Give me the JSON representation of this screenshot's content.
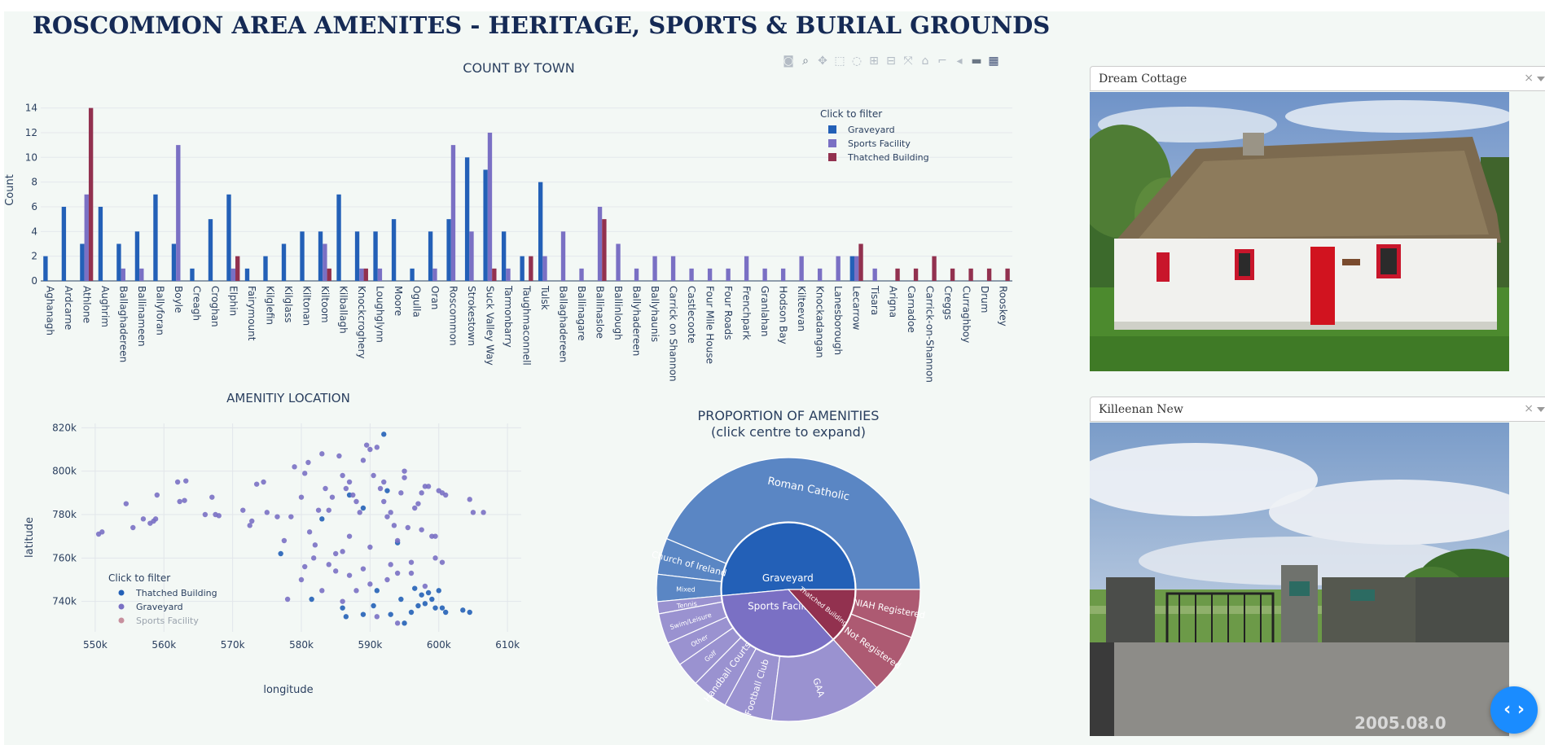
{
  "page": {
    "title": "ROSCOMMON AREA AMENITES - HERITAGE, SPORTS & BURIAL GROUNDS"
  },
  "colors": {
    "graveyard": "#2360b7",
    "sports": "#7a70c4",
    "thatched": "#92314f"
  },
  "toolbar": {
    "icons": [
      "camera-icon",
      "zoom-icon",
      "pan-icon",
      "box-select-icon",
      "lasso-icon",
      "zoom-in-icon",
      "zoom-out-icon",
      "autoscale-icon",
      "reset-axes-icon",
      "spike-lines-icon",
      "hover-closest-icon",
      "hover-compare-icon",
      "plotly-logo-icon"
    ]
  },
  "chart_data": [
    {
      "type": "bar",
      "title": "COUNT BY TOWN",
      "xlabel": "",
      "ylabel": "Count",
      "ylim": [
        0,
        14.7
      ],
      "yticks": [
        0,
        2,
        4,
        6,
        8,
        10,
        12,
        14
      ],
      "legend": {
        "title": "Click to filter",
        "placement": "top-right"
      },
      "categories": [
        "Aghanagh",
        "Ardcarne",
        "Athlone",
        "Aughrim",
        "Ballaghadereen",
        "Ballinameen",
        "Ballyforan",
        "Boyle",
        "Creagh",
        "Croghan",
        "Elphin",
        "Fairymount",
        "Kilglefin",
        "Kilglass",
        "Kiltonan",
        "Kiltoom",
        "Kilballagh",
        "Knockcroghery",
        "Loughglynn",
        "Moore",
        "Ogulla",
        "Oran",
        "Roscommon",
        "Strokestown",
        "Suck Valley Way",
        "Tarmonbarry",
        "Taughmaconnell",
        "Tulsk",
        "Ballaghadereen",
        "Ballinagare",
        "Ballinasloe",
        "Ballinlough",
        "Ballyhadereen",
        "Ballyhaunis",
        "Carrick on Shannon",
        "Castlecoote",
        "Four Mile House",
        "Four Roads",
        "Frenchpark",
        "Granlahan",
        "Hodson Bay",
        "Kilteevan",
        "Knockadangan",
        "Lanesborough",
        "Lecarrow",
        "Tisara",
        "Arigna",
        "Carnadoe",
        "Carrick-on-Shannon",
        "Creggs",
        "Curraghboy",
        "Drum",
        "Rooskey"
      ],
      "series": [
        {
          "name": "Graveyard",
          "values": [
            2,
            6,
            3,
            6,
            3,
            4,
            7,
            3,
            1,
            5,
            7,
            1,
            2,
            3,
            4,
            4,
            7,
            4,
            4,
            5,
            1,
            4,
            5,
            10,
            9,
            4,
            2,
            8,
            0,
            0,
            0,
            0,
            0,
            0,
            0,
            0,
            0,
            0,
            0,
            0,
            0,
            0,
            0,
            0,
            2,
            0,
            0,
            0,
            0,
            0,
            0,
            0,
            0
          ]
        },
        {
          "name": "Sports Facility",
          "values": [
            0,
            0,
            7,
            0,
            1,
            1,
            0,
            11,
            0,
            0,
            1,
            0,
            0,
            0,
            0,
            3,
            0,
            1,
            1,
            0,
            0,
            1,
            11,
            4,
            12,
            1,
            0,
            2,
            4,
            1,
            6,
            3,
            1,
            2,
            2,
            1,
            1,
            1,
            2,
            1,
            1,
            2,
            1,
            2,
            2,
            1,
            0,
            0,
            0,
            0,
            0,
            0,
            0
          ]
        },
        {
          "name": "Thatched Building",
          "values": [
            0,
            0,
            14,
            0,
            0,
            0,
            0,
            0,
            0,
            0,
            2,
            0,
            0,
            0,
            0,
            1,
            0,
            1,
            0,
            0,
            0,
            0,
            0,
            0,
            1,
            0,
            2,
            0,
            0,
            0,
            5,
            0,
            0,
            0,
            0,
            0,
            0,
            0,
            0,
            0,
            0,
            0,
            0,
            0,
            3,
            0,
            1,
            1,
            2,
            1,
            1,
            1,
            1
          ]
        }
      ]
    },
    {
      "type": "scatter",
      "title": "AMENITIY LOCATION",
      "xlabel": "longitude",
      "ylabel": "latitude",
      "xlim": [
        548000,
        612000
      ],
      "ylim": [
        726000,
        822000
      ],
      "xticks": [
        "550k",
        "560k",
        "570k",
        "580k",
        "590k",
        "600k",
        "610k"
      ],
      "yticks": [
        "740k",
        "760k",
        "780k",
        "800k",
        "820k"
      ],
      "legend": {
        "title": "Click to filter",
        "placement": "bottom-left"
      },
      "series": [
        {
          "name": "Thatched Building",
          "points": [
            [
              577000,
              762000
            ],
            [
              581500,
              741000
            ],
            [
              586000,
              737000
            ],
            [
              589000,
              734000
            ],
            [
              590500,
              738000
            ],
            [
              591000,
              745000
            ],
            [
              593000,
              734000
            ],
            [
              594500,
              741000
            ],
            [
              595000,
              730000
            ],
            [
              596000,
              735000
            ],
            [
              596500,
              746000
            ],
            [
              597000,
              738000
            ],
            [
              597500,
              743000
            ],
            [
              598000,
              739000
            ],
            [
              598500,
              744000
            ],
            [
              599000,
              741000
            ],
            [
              599500,
              737000
            ],
            [
              600000,
              745000
            ],
            [
              600500,
              737000
            ],
            [
              601000,
              735000
            ],
            [
              603500,
              736000
            ],
            [
              604500,
              735000
            ],
            [
              592000,
              817000
            ],
            [
              583000,
              778000
            ],
            [
              587000,
              789000
            ],
            [
              589000,
              783000
            ],
            [
              592500,
              791000
            ],
            [
              594000,
              767000
            ],
            [
              586500,
              733000
            ]
          ]
        },
        {
          "name": "Graveyard",
          "points": [
            [
              550500,
              771000
            ],
            [
              551000,
              772000
            ],
            [
              554500,
              785000
            ],
            [
              555500,
              774000
            ],
            [
              557000,
              778000
            ],
            [
              558000,
              776000
            ],
            [
              558500,
              777000
            ],
            [
              558800,
              778000
            ],
            [
              559000,
              789000
            ],
            [
              562000,
              795000
            ],
            [
              562300,
              786000
            ],
            [
              563000,
              786500
            ],
            [
              563200,
              795500
            ],
            [
              566000,
              780000
            ],
            [
              567000,
              788000
            ],
            [
              567500,
              780000
            ],
            [
              568000,
              779500
            ],
            [
              571500,
              782000
            ],
            [
              572500,
              775000
            ],
            [
              572800,
              777000
            ],
            [
              573500,
              794000
            ],
            [
              574500,
              795000
            ],
            [
              575000,
              781000
            ],
            [
              576500,
              779000
            ],
            [
              577500,
              768000
            ],
            [
              578500,
              779000
            ],
            [
              579000,
              802000
            ],
            [
              580000,
              788000
            ],
            [
              580500,
              799000
            ],
            [
              581000,
              804000
            ],
            [
              581200,
              772000
            ],
            [
              581800,
              760000
            ],
            [
              582000,
              766000
            ],
            [
              582500,
              782000
            ],
            [
              583000,
              808000
            ],
            [
              583500,
              792000
            ],
            [
              584000,
              782000
            ],
            [
              584500,
              788000
            ],
            [
              585000,
              754000
            ],
            [
              585500,
              807000
            ],
            [
              586000,
              798000
            ],
            [
              586500,
              792000
            ],
            [
              587000,
              795000
            ],
            [
              587500,
              789000
            ],
            [
              588000,
              786000
            ],
            [
              588500,
              781000
            ],
            [
              589000,
              805000
            ],
            [
              589500,
              812000
            ],
            [
              590000,
              810000
            ],
            [
              590500,
              798000
            ],
            [
              591000,
              811000
            ],
            [
              591500,
              792000
            ],
            [
              592000,
              786000
            ],
            [
              592500,
              779000
            ],
            [
              593000,
              781000
            ],
            [
              593500,
              775000
            ],
            [
              594000,
              768000
            ],
            [
              594500,
              790000
            ],
            [
              595000,
              797000
            ],
            [
              595500,
              774000
            ],
            [
              596000,
              758000
            ],
            [
              596500,
              783000
            ],
            [
              597000,
              785000
            ],
            [
              597500,
              790000
            ],
            [
              598000,
              793000
            ],
            [
              598500,
              793000
            ],
            [
              599000,
              770000
            ],
            [
              599500,
              770000
            ],
            [
              600000,
              791000
            ],
            [
              600500,
              790000
            ],
            [
              601000,
              789000
            ],
            [
              604500,
              787000
            ],
            [
              605000,
              781000
            ],
            [
              606500,
              781000
            ],
            [
              584000,
              757000
            ],
            [
              585000,
              762000
            ],
            [
              586000,
              763000
            ],
            [
              583000,
              745000
            ],
            [
              580500,
              756000
            ],
            [
              578000,
              741000
            ],
            [
              580000,
              750000
            ],
            [
              590000,
              748000
            ],
            [
              589000,
              755000
            ],
            [
              587000,
              752000
            ],
            [
              593000,
              757000
            ],
            [
              592500,
              750000
            ],
            [
              594000,
              753000
            ],
            [
              596000,
              753000
            ],
            [
              598000,
              747000
            ],
            [
              587000,
              770000
            ],
            [
              590000,
              765000
            ],
            [
              592000,
              795000
            ],
            [
              595000,
              800000
            ],
            [
              597500,
              773000
            ],
            [
              599500,
              760000
            ],
            [
              600500,
              758000
            ],
            [
              588000,
              745000
            ],
            [
              591000,
              733000
            ],
            [
              586000,
              740000
            ],
            [
              594000,
              730000
            ]
          ]
        },
        {
          "name": "Sports Facility",
          "points": []
        }
      ]
    },
    {
      "type": "sunburst",
      "title": "PROPORTION OF AMENITIES",
      "subtitle": "(click centre to expand)",
      "inner": [
        {
          "name": "Graveyard",
          "value": 139
        },
        {
          "name": "Sports Facility",
          "value": 95
        },
        {
          "name": "Thatched Building",
          "value": 36
        }
      ],
      "outer": [
        {
          "parent": "Graveyard",
          "name": "Roman Catholic",
          "value": 118
        },
        {
          "parent": "Graveyard",
          "name": "Church of Ireland",
          "value": 12
        },
        {
          "parent": "Graveyard",
          "name": "Mixed",
          "value": 9
        },
        {
          "parent": "Sports Facility",
          "name": "Tennis",
          "value": 4
        },
        {
          "parent": "Sports Facility",
          "name": "Swim/Leisure",
          "value": 10
        },
        {
          "parent": "Sports Facility",
          "name": "Other",
          "value": 8
        },
        {
          "parent": "Sports Facility",
          "name": "Golf",
          "value": 8
        },
        {
          "parent": "Sports Facility",
          "name": "Handball Courts",
          "value": 12
        },
        {
          "parent": "Sports Facility",
          "name": "Football Club",
          "value": 16
        },
        {
          "parent": "Sports Facility",
          "name": "GAA",
          "value": 37
        },
        {
          "parent": "Thatched Building",
          "name": "Not Registered",
          "value": 20
        },
        {
          "parent": "Thatched Building",
          "name": "NIAH Registered",
          "value": 16
        }
      ]
    }
  ],
  "panels": [
    {
      "selected": "Dream Cottage",
      "clear": "×"
    },
    {
      "selected": "Killeenan New",
      "clear": "×"
    }
  ],
  "photos": {
    "stamp": "2005.08.0"
  },
  "fab": {
    "label": "‹ ›"
  }
}
